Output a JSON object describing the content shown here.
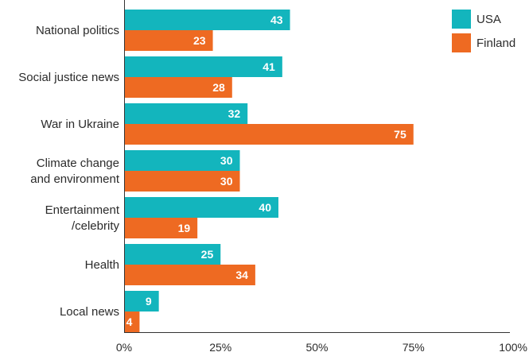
{
  "chart_data": {
    "type": "bar",
    "orientation": "horizontal",
    "categories": [
      [
        "National politics"
      ],
      [
        "Social justice news"
      ],
      [
        "War in Ukraine"
      ],
      [
        "Climate change",
        "and environment"
      ],
      [
        "Entertainment",
        "/celebrity"
      ],
      [
        "Health"
      ],
      [
        "Local news"
      ]
    ],
    "series": [
      {
        "name": "USA",
        "color": "#13b5bd",
        "values": [
          43,
          41,
          32,
          30,
          40,
          25,
          9
        ]
      },
      {
        "name": "Finland",
        "color": "#ee6a22",
        "values": [
          23,
          28,
          75,
          30,
          19,
          34,
          4
        ]
      }
    ],
    "xlim": [
      0,
      100
    ],
    "xticks": [
      "0%",
      "25%",
      "50%",
      "75%",
      "100%"
    ],
    "title": "",
    "xlabel": "",
    "ylabel": "",
    "legend": {
      "placement": "top-right"
    },
    "grid": false
  }
}
